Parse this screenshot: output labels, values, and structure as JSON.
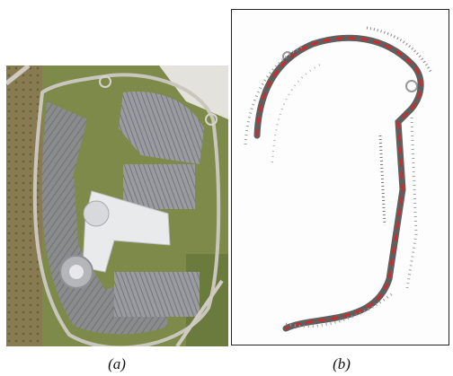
{
  "figure": {
    "panels": [
      {
        "id": "a",
        "label": "(a)",
        "content": "aerial-photo"
      },
      {
        "id": "b",
        "label": "(b)",
        "content": "point-map"
      }
    ]
  },
  "colors": {
    "map_trail": "#d62828",
    "map_points": "#111111",
    "aerial_grass": "#7d8a4a",
    "aerial_parking": "#8e8f95"
  }
}
